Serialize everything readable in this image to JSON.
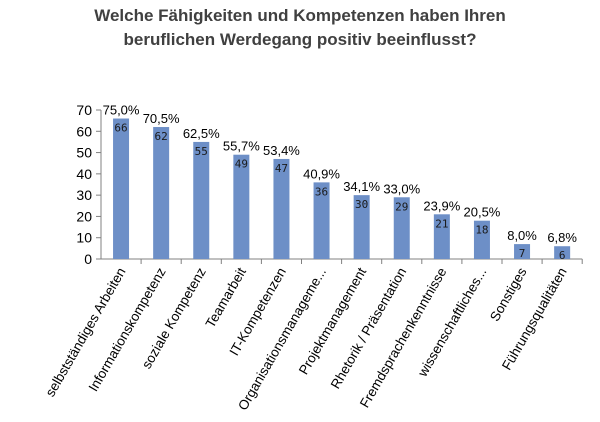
{
  "chart_data": {
    "type": "bar",
    "title_lines": [
      "Welche Fähigkeiten und Kompetenzen haben Ihren",
      "beruflichen Werdegang positiv beeinflusst?"
    ],
    "categories": [
      "selbstständiges Arbeiten",
      "Informationskompetenz",
      "soziale Kompetenz",
      "Teamarbeit",
      "IT-Kompetenzen",
      "Organisationsmanageme...",
      "Projektmanagement",
      "Rhetorik / Präsentation",
      "Fremdsprachenkenntnisse",
      "wissenschaftliches...",
      "Sonstiges",
      "Führungsqualitäten"
    ],
    "values": [
      66,
      62,
      55,
      49,
      47,
      36,
      30,
      29,
      21,
      18,
      7,
      6
    ],
    "percent_labels": [
      "75,0%",
      "70,5%",
      "62,5%",
      "55,7%",
      "53,4%",
      "40,9%",
      "34,1%",
      "33,0%",
      "23,9%",
      "20,5%",
      "8,0%",
      "6,8%"
    ],
    "ylim": [
      0,
      70
    ],
    "yticks": [
      "0",
      "10",
      "20",
      "30",
      "40",
      "50",
      "60",
      "70"
    ],
    "grid": false,
    "bar_color": "#6d8fc7"
  }
}
